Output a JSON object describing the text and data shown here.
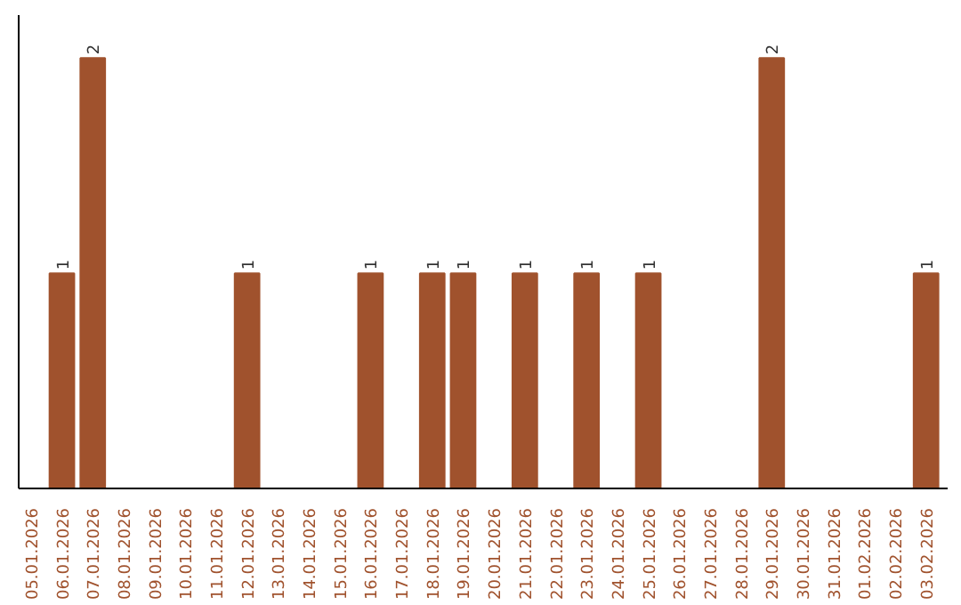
{
  "chart_data": {
    "type": "bar",
    "categories": [
      "05.01.2026",
      "06.01.2026",
      "07.01.2026",
      "08.01.2026",
      "09.01.2026",
      "10.01.2026",
      "11.01.2026",
      "12.01.2026",
      "13.01.2026",
      "14.01.2026",
      "15.01.2026",
      "16.01.2026",
      "17.01.2026",
      "18.01.2026",
      "19.01.2026",
      "20.01.2026",
      "21.01.2026",
      "22.01.2026",
      "23.01.2026",
      "24.01.2026",
      "25.01.2026",
      "26.01.2026",
      "27.01.2026",
      "28.01.2026",
      "29.01.2026",
      "30.01.2026",
      "31.01.2026",
      "01.02.2026",
      "02.02.2026",
      "03.02.2026"
    ],
    "values": [
      0,
      1,
      2,
      0,
      0,
      0,
      0,
      1,
      0,
      0,
      0,
      1,
      0,
      1,
      1,
      0,
      1,
      0,
      1,
      0,
      1,
      0,
      0,
      0,
      2,
      0,
      0,
      0,
      0,
      1
    ],
    "value_labels": [
      null,
      "1",
      "2",
      null,
      null,
      null,
      null,
      "1",
      null,
      null,
      null,
      "1",
      null,
      "1",
      "1",
      null,
      "1",
      null,
      "1",
      null,
      "1",
      null,
      null,
      null,
      "2",
      null,
      null,
      null,
      null,
      "1"
    ],
    "color": "#a0522d",
    "tick_labels": "x",
    "grid": false
  }
}
